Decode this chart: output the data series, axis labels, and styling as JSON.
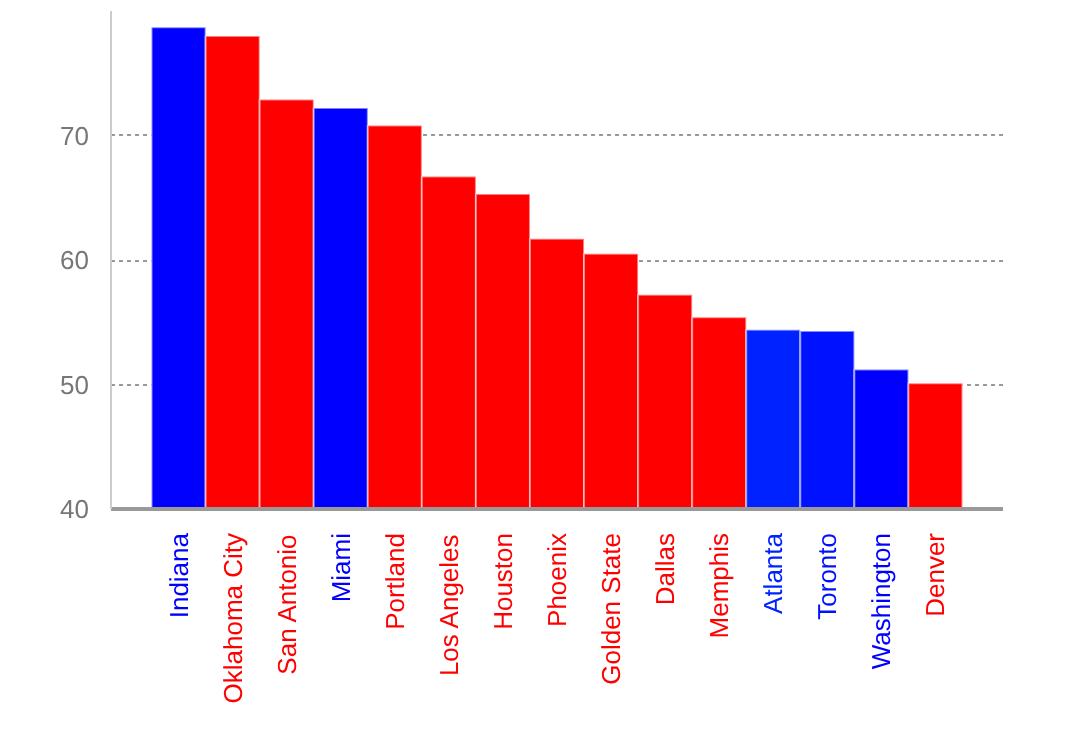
{
  "chart_data": {
    "type": "bar",
    "categories": [
      "Indiana",
      "Oklahoma City",
      "San Antonio",
      "Miami",
      "Portland",
      "Los Angeles",
      "Houston",
      "Phoenix",
      "Golden State",
      "Dallas",
      "Memphis",
      "Atlanta",
      "Toronto",
      "Washington",
      "Denver"
    ],
    "values": [
      78.7,
      78.0,
      72.9,
      72.2,
      70.8,
      66.7,
      65.3,
      61.7,
      60.5,
      57.2,
      55.4,
      54.4,
      54.3,
      51.2,
      50.1
    ],
    "colors": [
      "#0000ff",
      "#ff0000",
      "#ff0000",
      "#0000ff",
      "#ff0000",
      "#ff0000",
      "#ff0000",
      "#ff0000",
      "#ff0000",
      "#ff0000",
      "#ff0000",
      "#0022ff",
      "#0011ff",
      "#0000ff",
      "#ff0000"
    ],
    "ylim": [
      40,
      80
    ],
    "yticks": [
      40,
      50,
      60,
      70
    ],
    "grid": "y"
  }
}
